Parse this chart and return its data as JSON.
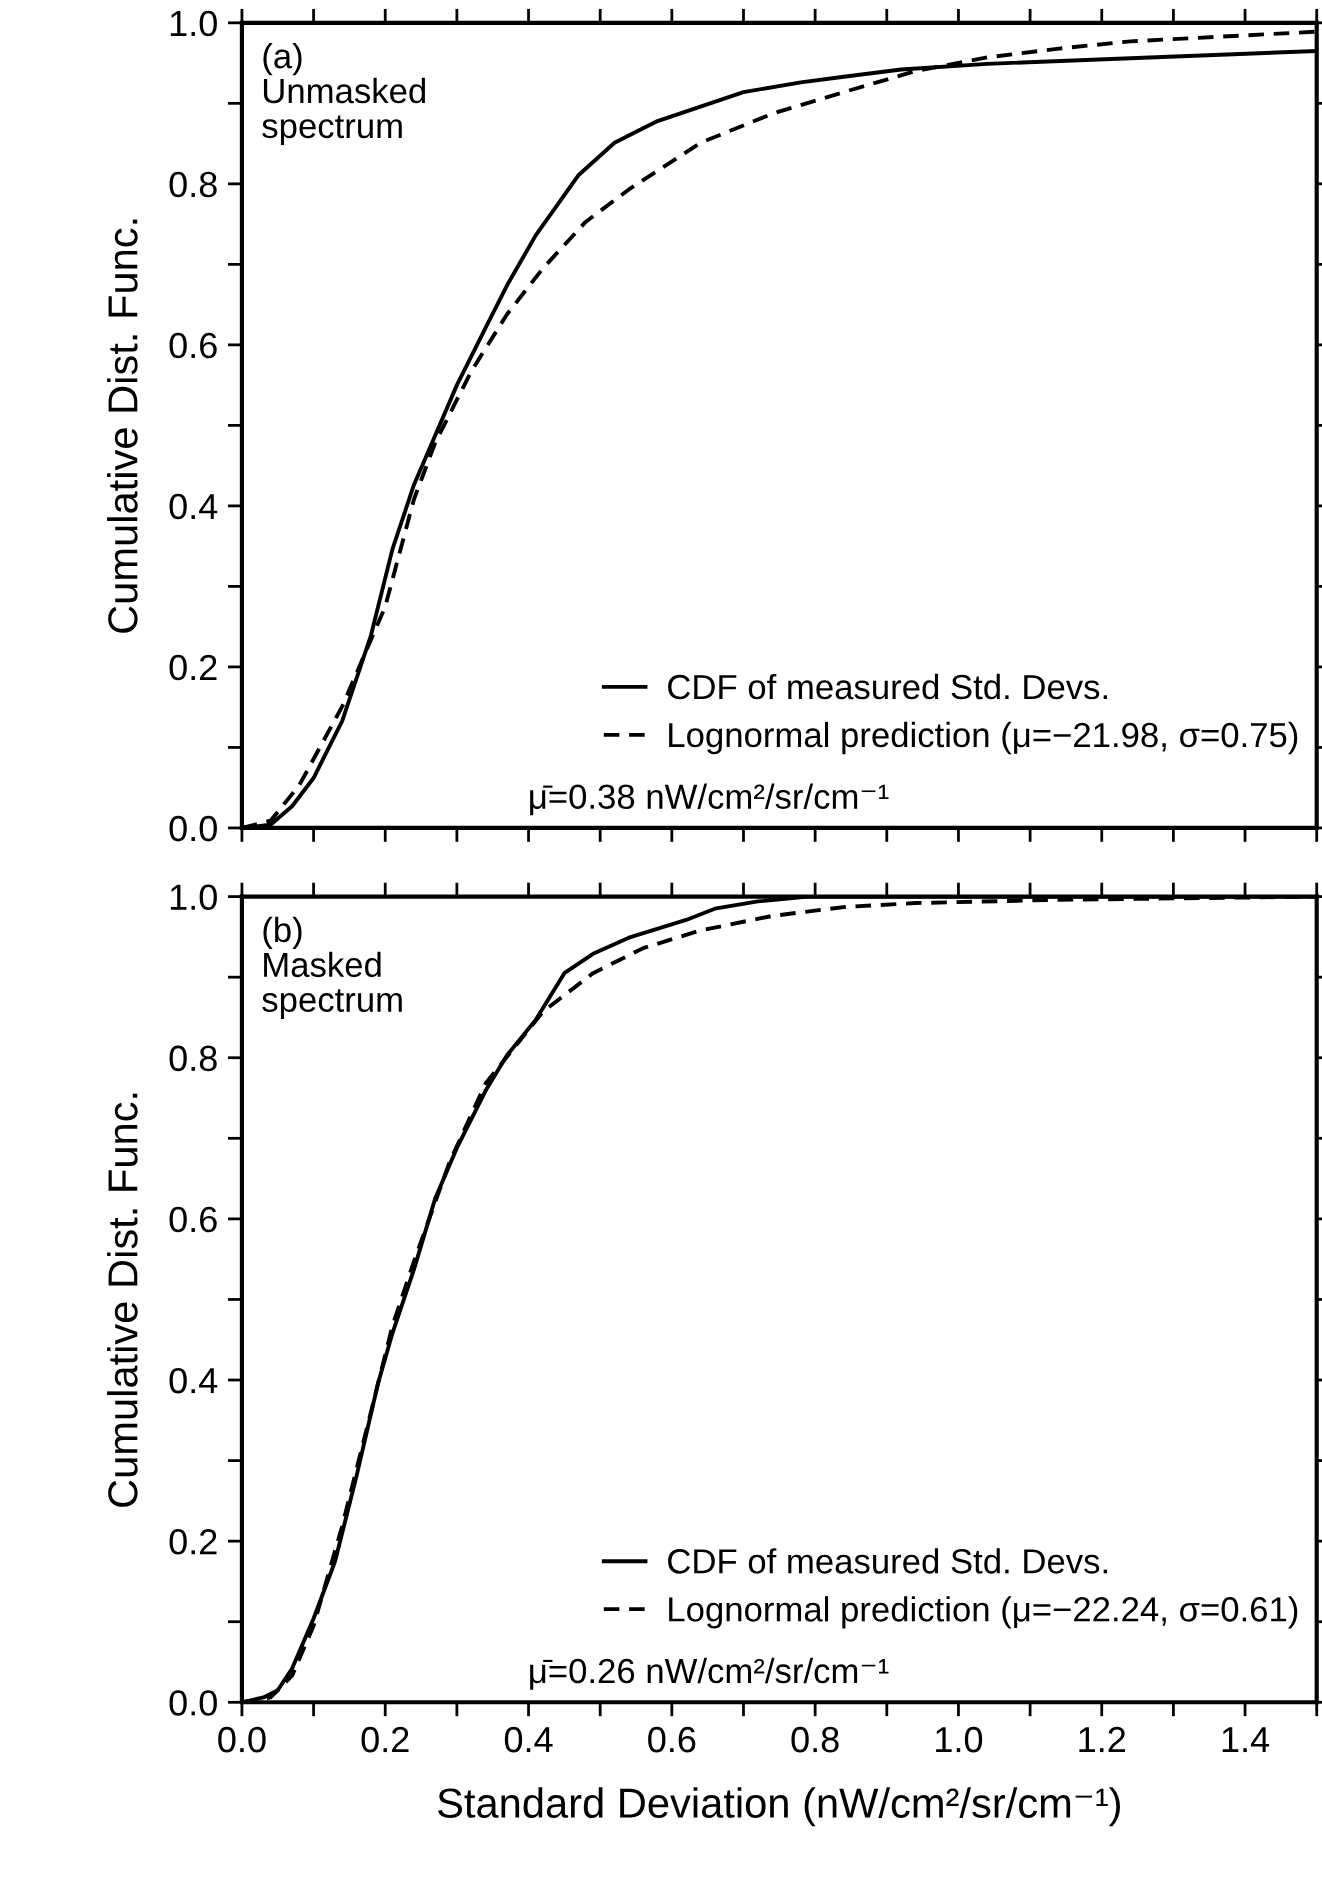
{
  "chart_data": [
    {
      "type": "line",
      "ylabel": "Cumulative Dist. Func.",
      "annotations": [
        "(a)\nUnmasked\nspectrum",
        "μ̄=0.38 nW/cm²/sr/cm⁻¹"
      ],
      "series": [
        {
          "name": "CDF of measured Std. Devs.",
          "color": "#000000",
          "line_style": "solid",
          "x": [
            0,
            0.04,
            0.07,
            0.1,
            0.14,
            0.18,
            0.21,
            0.24,
            0.27,
            0.3,
            0.34,
            0.37,
            0.41,
            0.47,
            0.52,
            0.58,
            0.64,
            0.7,
            0.78,
            0.84,
            0.92,
            1.04,
            1.24,
            1.5
          ],
          "values": [
            0,
            0.004,
            0.027,
            0.062,
            0.133,
            0.239,
            0.346,
            0.426,
            0.488,
            0.55,
            0.621,
            0.674,
            0.736,
            0.811,
            0.851,
            0.878,
            0.896,
            0.914,
            0.926,
            0.933,
            0.942,
            0.949,
            0.956,
            0.965
          ]
        },
        {
          "name": "Lognormal prediction (μ=−21.98, σ=0.75)",
          "color": "#000000",
          "line_style": "dashed",
          "x": [
            0,
            0.04,
            0.08,
            0.14,
            0.2,
            0.24,
            0.27,
            0.32,
            0.37,
            0.42,
            0.48,
            0.54,
            0.64,
            0.74,
            0.84,
            0.94,
            1.04,
            1.14,
            1.24,
            1.5
          ],
          "values": [
            0,
            0.009,
            0.053,
            0.151,
            0.275,
            0.408,
            0.479,
            0.567,
            0.638,
            0.695,
            0.753,
            0.793,
            0.851,
            0.887,
            0.914,
            0.94,
            0.957,
            0.968,
            0.977,
            0.989
          ]
        }
      ],
      "xlim": [
        0,
        1.5
      ],
      "ylim": [
        0,
        1.0
      ],
      "xticks": [
        0,
        {
          "value": 0.1,
          "label": null
        },
        0.2,
        {
          "value": 0.3,
          "label": null
        },
        0.4,
        {
          "value": 0.5,
          "label": null
        },
        0.6,
        {
          "value": 0.7,
          "label": null
        },
        0.8,
        {
          "value": 0.9,
          "label": null
        },
        1.0,
        {
          "value": 1.1,
          "label": null
        },
        1.2,
        {
          "value": 1.3,
          "label": null
        },
        1.4,
        {
          "value": 1.5,
          "label": null
        }
      ],
      "yticks": [
        {
          "value": 0,
          "label": "0.0"
        },
        {
          "value": 0.1,
          "label": null
        },
        0.2,
        {
          "value": 0.3,
          "label": null
        },
        0.4,
        {
          "value": 0.5,
          "label": null
        },
        0.6,
        {
          "value": 0.7,
          "label": null
        },
        0.8,
        {
          "value": 0.9,
          "label": null
        },
        {
          "value": 1,
          "label": "1.0"
        }
      ],
      "tick_labels": "y",
      "grid": false,
      "legend": "bottom right"
    },
    {
      "type": "line",
      "xlabel": "Standard Deviation (nW/cm²/sr/cm⁻¹)",
      "ylabel": "Cumulative Dist. Func.",
      "annotations": [
        "(b)\nMasked\nspectrum",
        "μ̄=0.26 nW/cm²/sr/cm⁻¹"
      ],
      "series": [
        {
          "name": "CDF of measured Std. Devs.",
          "color": "#000000",
          "line_style": "solid",
          "x": [
            0,
            0.03,
            0.05,
            0.07,
            0.1,
            0.13,
            0.16,
            0.19,
            0.21,
            0.24,
            0.27,
            0.3,
            0.34,
            0.37,
            0.41,
            0.45,
            0.49,
            0.54,
            0.62,
            0.66,
            0.72,
            0.79,
            1.5
          ],
          "values": [
            0,
            0.006,
            0.015,
            0.042,
            0.104,
            0.175,
            0.281,
            0.396,
            0.458,
            0.537,
            0.626,
            0.688,
            0.759,
            0.803,
            0.847,
            0.905,
            0.929,
            0.949,
            0.971,
            0.985,
            0.994,
            1.0,
            1.0
          ]
        },
        {
          "name": "Lognormal prediction (μ=−22.24, σ=0.61)",
          "color": "#000000",
          "line_style": "dashed",
          "x": [
            0,
            0.04,
            0.07,
            0.1,
            0.14,
            0.18,
            0.21,
            0.24,
            0.29,
            0.34,
            0.42,
            0.49,
            0.56,
            0.64,
            0.74,
            0.84,
            0.94,
            1.14,
            1.5
          ],
          "values": [
            0,
            0.006,
            0.033,
            0.095,
            0.219,
            0.36,
            0.467,
            0.547,
            0.671,
            0.768,
            0.857,
            0.905,
            0.936,
            0.958,
            0.976,
            0.987,
            0.992,
            0.996,
            1.0
          ]
        }
      ],
      "xlim": [
        0,
        1.5
      ],
      "ylim": [
        0,
        1.0
      ],
      "xticks": [
        {
          "value": 0,
          "label": "0.0"
        },
        {
          "value": 0.1,
          "label": null
        },
        0.2,
        {
          "value": 0.3,
          "label": null
        },
        0.4,
        {
          "value": 0.5,
          "label": null
        },
        0.6,
        {
          "value": 0.7,
          "label": null
        },
        0.8,
        {
          "value": 0.9,
          "label": null
        },
        {
          "value": 1,
          "label": "1.0"
        },
        {
          "value": 1.1,
          "label": null
        },
        1.2,
        {
          "value": 1.3,
          "label": null
        },
        1.4,
        {
          "value": 1.5,
          "label": null
        }
      ],
      "yticks": [
        {
          "value": 0,
          "label": "0.0"
        },
        {
          "value": 0.1,
          "label": null
        },
        0.2,
        {
          "value": 0.3,
          "label": null
        },
        0.4,
        {
          "value": 0.5,
          "label": null
        },
        0.6,
        {
          "value": 0.7,
          "label": null
        },
        0.8,
        {
          "value": 0.9,
          "label": null
        },
        {
          "value": 1,
          "label": "1.0"
        }
      ],
      "grid": false,
      "legend": "bottom right"
    }
  ]
}
